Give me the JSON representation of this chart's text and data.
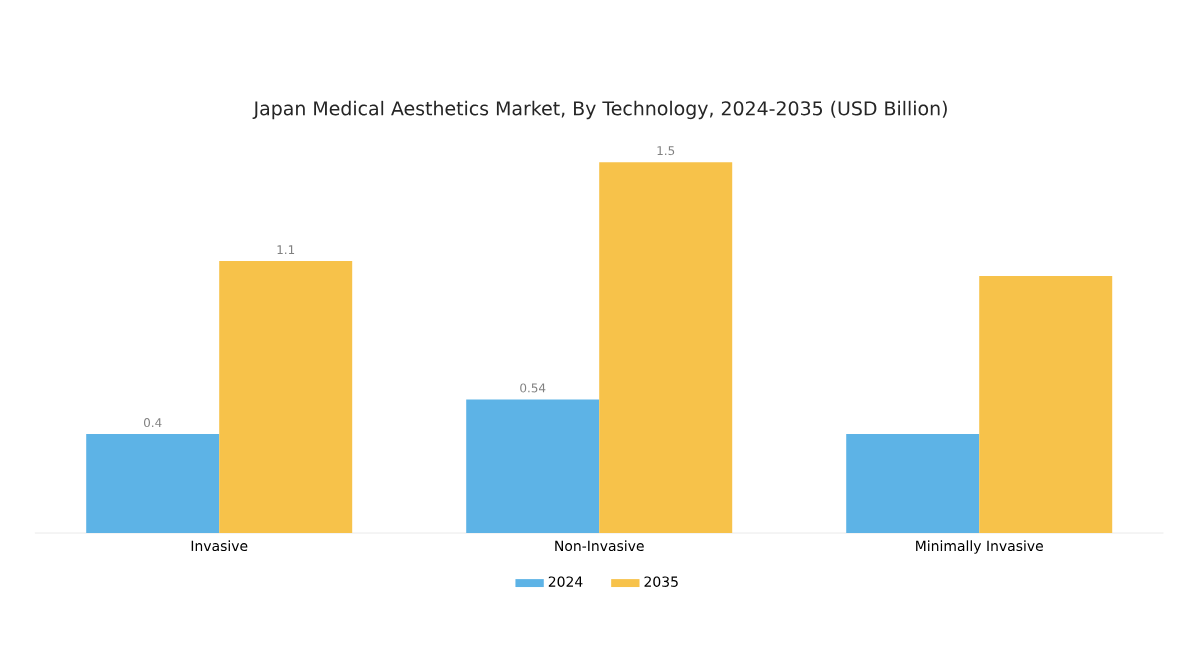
{
  "chart_data": {
    "type": "bar",
    "title": "Japan Medical Aesthetics Market, By Technology, 2024-2035 (USD Billion)",
    "categories": [
      "Invasive",
      "Non-Invasive",
      "Minimally Invasive"
    ],
    "series": [
      {
        "name": "2024",
        "color": "#5db3e6",
        "values": [
          0.4,
          0.54,
          0.4
        ],
        "value_labels": [
          "0.4",
          "0.54",
          null
        ]
      },
      {
        "name": "2035",
        "color": "#f7c24a",
        "values": [
          1.1,
          1.5,
          1.04
        ],
        "value_labels": [
          "1.1",
          "1.5",
          null
        ]
      }
    ],
    "legend": "bottom"
  }
}
